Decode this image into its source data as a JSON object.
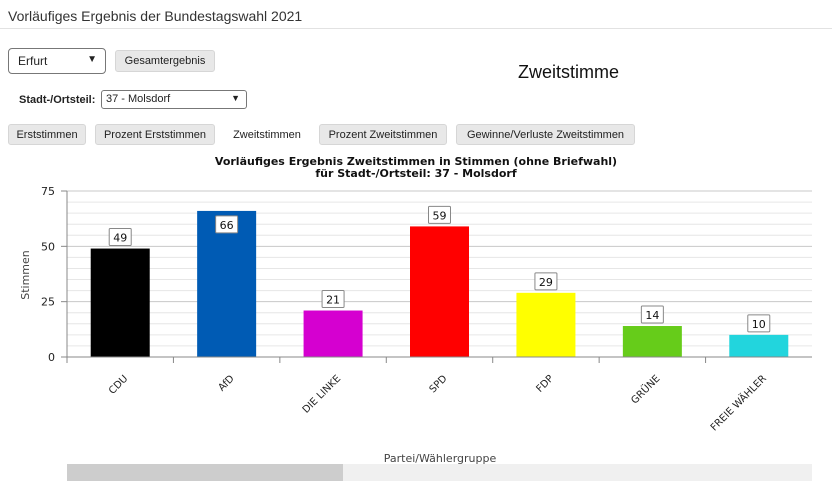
{
  "header": {
    "title": "Vorläufiges Ergebnis der Bundestagswahl 2021"
  },
  "controls": {
    "city_value": "Erfurt",
    "total_button": "Gesamtergebnis",
    "district_label": "Stadt-/Ortsteil:",
    "district_value": "37 - Molsdorf"
  },
  "vote_type_heading": "Zweitstimme",
  "tabs": [
    {
      "label": "Erststimmen",
      "active": false
    },
    {
      "label": "Prozent Erststimmen",
      "active": false
    },
    {
      "label": "Zweitstimmen",
      "active": true
    },
    {
      "label": "Prozent Zweitstimmen",
      "active": false
    },
    {
      "label": "Gewinne/Verluste Zweitstimmen",
      "active": false
    }
  ],
  "scrollbar": {
    "thumb_fraction": 0.37
  },
  "chart_data": {
    "type": "bar",
    "title_lines": [
      "Vorläufiges Ergebnis Zweitstimmen in Stimmen (ohne Briefwahl)",
      "für Stadt-/Ortsteil: 37 - Molsdorf"
    ],
    "xlabel": "Partei/Wählergruppe",
    "ylabel": "Stimmen",
    "ylim": [
      0,
      75
    ],
    "yticks": [
      0,
      25,
      50,
      75
    ],
    "grid": true,
    "categories": [
      "CDU",
      "AfD",
      "DIE LINKE",
      "SPD",
      "FDP",
      "GRÜNE",
      "FREIE WÄHLER"
    ],
    "values": [
      49,
      66,
      21,
      59,
      29,
      14,
      10
    ],
    "colors": [
      "#000000",
      "#005bb4",
      "#d500d0",
      "#ff0000",
      "#ffff00",
      "#66cc1a",
      "#22d5dd"
    ]
  }
}
